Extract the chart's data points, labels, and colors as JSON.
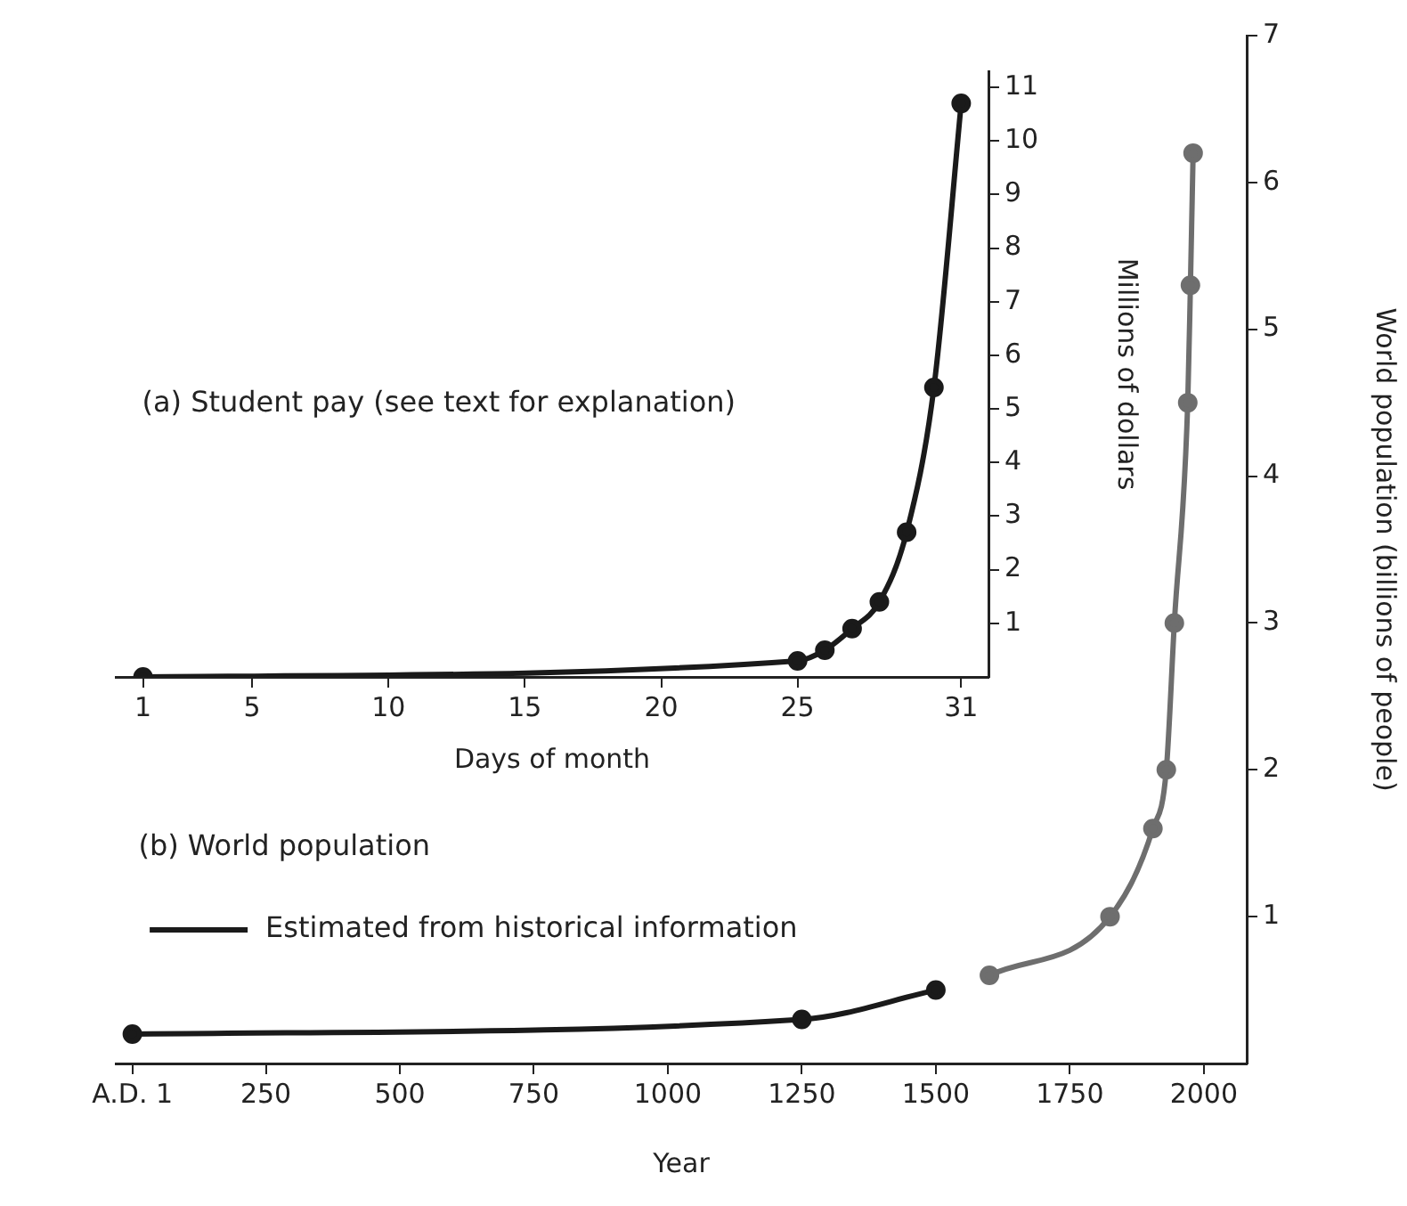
{
  "chart_data": [
    {
      "type": "line",
      "title": "(a) Student pay (see text for explanation)",
      "xlabel": "Days of month",
      "ylabel": "Millions of dollars",
      "x": [
        1,
        25,
        26,
        27,
        28,
        29,
        30,
        31
      ],
      "series": [
        {
          "color": "#1a1a1a",
          "values": [
            0,
            0.3,
            0.5,
            0.9,
            1.4,
            2.7,
            5.4,
            10.7
          ]
        }
      ],
      "xlim": [
        0,
        32
      ],
      "xticks": [
        1,
        5,
        10,
        15,
        20,
        25,
        31
      ],
      "ylim": [
        0,
        11.3
      ],
      "yticks": [
        1,
        2,
        3,
        4,
        5,
        6,
        7,
        8,
        9,
        10,
        11
      ],
      "grid": false,
      "legend": false,
      "marker": "circle",
      "line_style": "solid"
    },
    {
      "type": "line",
      "title": "(b) World population",
      "xlabel": "Year",
      "ylabel": "World population (billions of people)",
      "series": [
        {
          "name": "Estimated from historical information",
          "color": "#1a1a1a",
          "x": [
            1,
            1250,
            1500
          ],
          "values": [
            0.2,
            0.3,
            0.5
          ]
        },
        {
          "color": "#6e6e6e",
          "x": [
            1600,
            1825,
            1905,
            1930,
            1945,
            1970,
            1975,
            1980
          ],
          "values": [
            0.6,
            1.0,
            1.6,
            2.0,
            3.0,
            4.5,
            5.3,
            6.2
          ]
        }
      ],
      "xlim": [
        -30,
        2080
      ],
      "xticks": [
        {
          "value": 1,
          "label": "A.D. 1"
        },
        250,
        500,
        750,
        1000,
        1250,
        1500,
        1750,
        2000
      ],
      "ylim": [
        0,
        7
      ],
      "yticks": [
        1,
        2,
        3,
        4,
        5,
        6,
        7
      ],
      "grid": false,
      "legend": "left",
      "marker": "circle",
      "line_style": "solid"
    }
  ]
}
